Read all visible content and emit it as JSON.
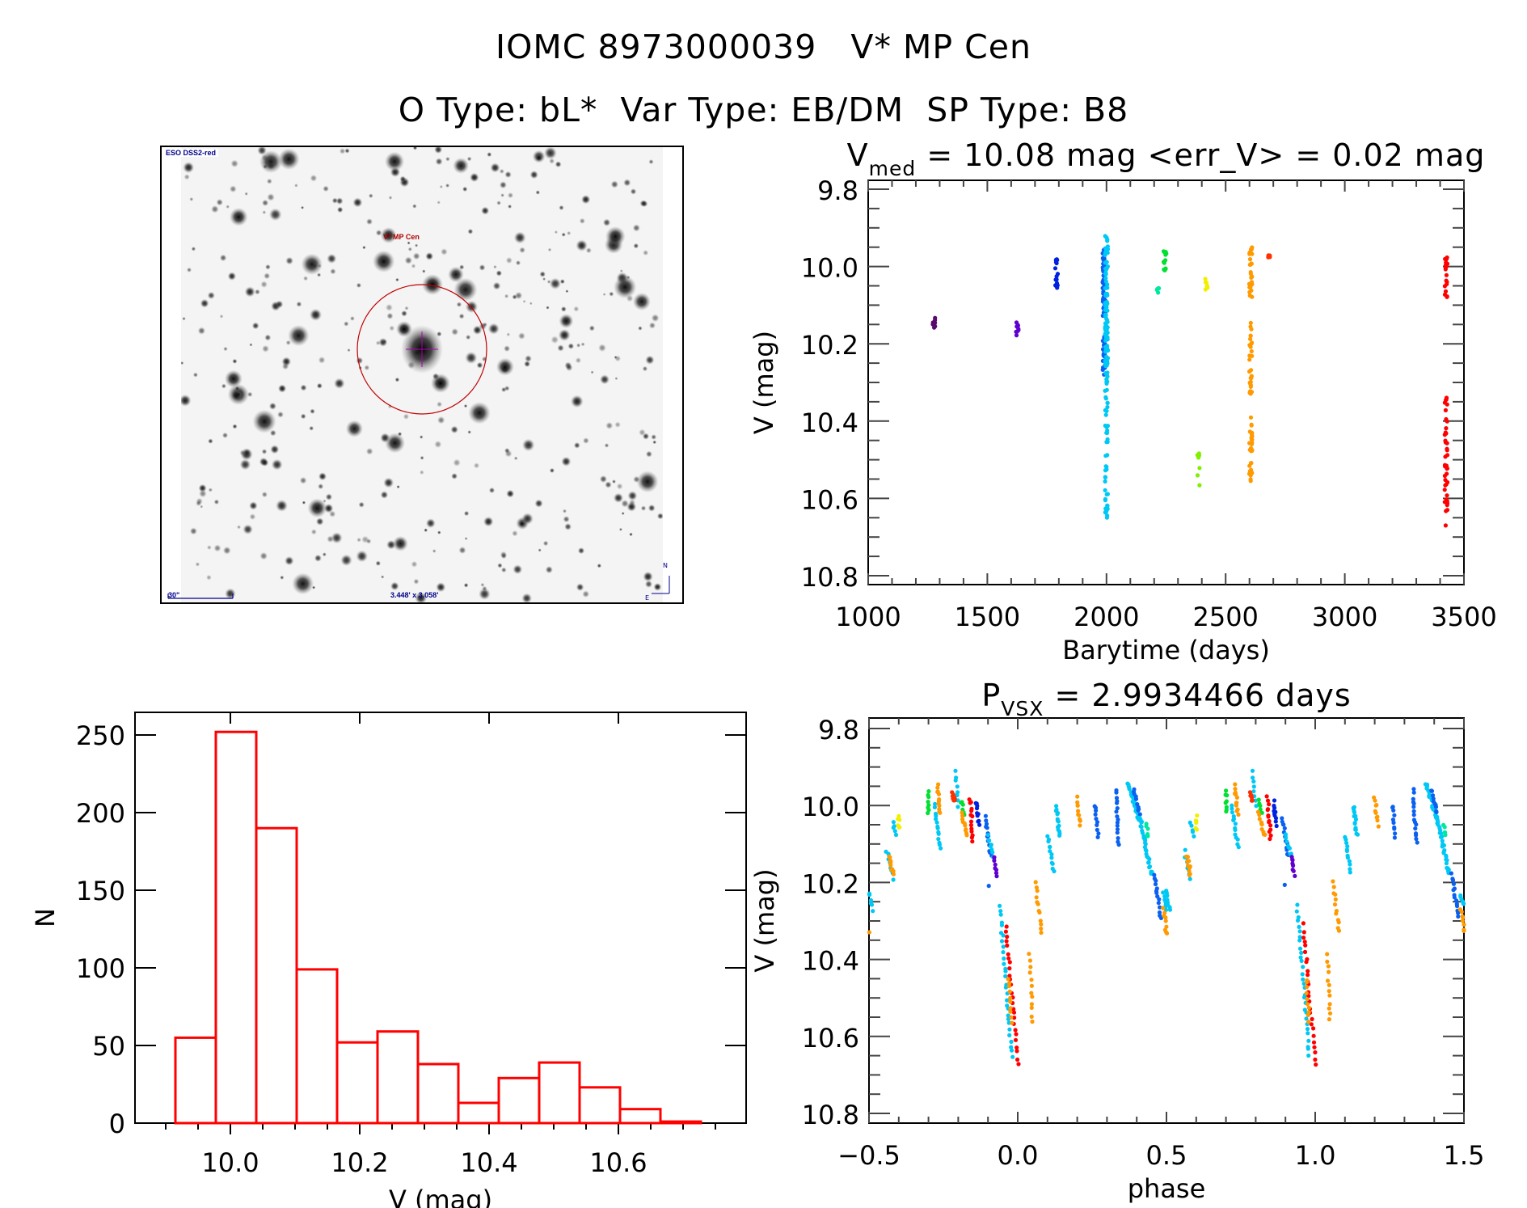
{
  "header": {
    "title_line1": "IOMC 8973000039   V* MP Cen",
    "title_line2": "O Type: bL*  Var Type: EB/DM  SP Type: B8"
  },
  "image_panel": {
    "survey": "ESO DSS2-red",
    "target": "V* MP Cen",
    "scale_bar": "30\"",
    "dimensions": "3.448' x 3.058'",
    "compass_north": "N",
    "compass_east": "E",
    "circle_color": "#c00000",
    "crosshair_color": "#b000b0"
  },
  "chart_data": [
    {
      "id": "light-curve",
      "type": "scatter",
      "title_main": "V",
      "title_sub": "med",
      "title_rest": " = 10.08 mag <err_V> = 0.02 mag",
      "xlabel": "Barytime (days)",
      "ylabel": "V (mag)",
      "xlim": [
        1000,
        3500
      ],
      "ylim": [
        9.8,
        10.8
      ],
      "y_inverted": true,
      "xticks": [
        1000,
        1500,
        2000,
        2500,
        3000,
        3500
      ],
      "xtick_labels": [
        "1000",
        "1500",
        "2000",
        "2500",
        "3000",
        "3500"
      ],
      "yticks": [
        9.8,
        10.0,
        10.2,
        10.4,
        10.6,
        10.8
      ],
      "ytick_labels": [
        "9.8",
        "10.0",
        "10.2",
        "10.4",
        "10.6",
        "10.8"
      ],
      "segments": [
        {
          "x": 1275,
          "color": "#5a0a6e",
          "y": [
            10.13,
            10.16
          ],
          "n": 8
        },
        {
          "x": 1625,
          "color": "#6000d0",
          "y": [
            10.14,
            10.18
          ],
          "n": 9
        },
        {
          "x": 1790,
          "color": "#0022e0",
          "y": [
            9.98,
            10.06
          ],
          "n": 16
        },
        {
          "x": 1990,
          "color": "#0a60f0",
          "y": [
            9.95,
            10.13
          ],
          "n": 60
        },
        {
          "x": 1990,
          "color": "#0a60f0",
          "y": [
            10.18,
            10.28
          ],
          "n": 25
        },
        {
          "x": 2000,
          "color": "#00c8f5",
          "y": [
            9.92,
            10.3
          ],
          "n": 110
        },
        {
          "x": 2000,
          "color": "#00c8f5",
          "y": [
            10.3,
            10.65
          ],
          "n": 45
        },
        {
          "x": 2215,
          "color": "#00e8a0",
          "y": [
            10.05,
            10.07
          ],
          "n": 5
        },
        {
          "x": 2245,
          "color": "#00e030",
          "y": [
            9.96,
            10.02
          ],
          "n": 14
        },
        {
          "x": 2385,
          "color": "#80f000",
          "y": [
            10.48,
            10.57
          ],
          "n": 7
        },
        {
          "x": 2420,
          "color": "#f0f000",
          "y": [
            10.03,
            10.06
          ],
          "n": 7
        },
        {
          "x": 2605,
          "color": "#ff9a00",
          "y": [
            9.95,
            10.08
          ],
          "n": 30
        },
        {
          "x": 2605,
          "color": "#ff9a00",
          "y": [
            10.13,
            10.33
          ],
          "n": 30
        },
        {
          "x": 2605,
          "color": "#ff9a00",
          "y": [
            10.39,
            10.56
          ],
          "n": 30
        },
        {
          "x": 2680,
          "color": "#ff3000",
          "y": [
            9.97,
            9.98
          ],
          "n": 6
        },
        {
          "x": 3425,
          "color": "#ff0000",
          "y": [
            9.97,
            10.09
          ],
          "n": 18
        },
        {
          "x": 3425,
          "color": "#ff0000",
          "y": [
            10.31,
            10.64
          ],
          "n": 40
        },
        {
          "x": 3425,
          "color": "#ff0000",
          "y": [
            10.67,
            10.67
          ],
          "n": 1
        }
      ]
    },
    {
      "id": "histogram",
      "type": "bar",
      "title": "",
      "xlabel": "V (mag)",
      "ylabel": "N",
      "xlim": [
        9.8525,
        10.7975
      ],
      "ylim": [
        0,
        265
      ],
      "xticks": [
        10.0,
        10.2,
        10.4,
        10.6
      ],
      "xtick_labels": [
        "10.0",
        "10.2",
        "10.4",
        "10.6"
      ],
      "yticks": [
        0,
        50,
        100,
        150,
        200,
        250
      ],
      "ytick_labels": [
        "0",
        "50",
        "100",
        "150",
        "200",
        "250"
      ],
      "bin_start": 9.915,
      "bin_width": 0.0625,
      "values": [
        55,
        252,
        190,
        99,
        52,
        59,
        38,
        13,
        29,
        39,
        23,
        9,
        1
      ],
      "color": "#ff0000"
    },
    {
      "id": "phase-curve",
      "type": "scatter",
      "title_main": "P",
      "title_sub": "VSX",
      "title_rest": " = 2.9934466 days",
      "xlabel": "phase",
      "ylabel": "V (mag)",
      "xlim": [
        -0.5,
        1.5
      ],
      "ylim": [
        9.8,
        10.8
      ],
      "y_inverted": true,
      "period_repeat": 1.0,
      "xticks": [
        -0.5,
        0.0,
        0.5,
        1.0,
        1.5
      ],
      "xtick_labels": [
        "−0.5",
        "0.0",
        "0.5",
        "1.0",
        "1.5"
      ],
      "yticks": [
        9.8,
        10.0,
        10.2,
        10.4,
        10.6,
        10.8
      ],
      "ytick_labels": [
        "9.8",
        "10.0",
        "10.2",
        "10.4",
        "10.6",
        "10.8"
      ],
      "segments": [
        {
          "p": [
            -0.5,
            -0.49
          ],
          "y": [
            10.22,
            10.27
          ],
          "color": "#00c8f5",
          "n": 8
        },
        {
          "p": [
            -0.5,
            -0.5
          ],
          "y": [
            10.33,
            10.33
          ],
          "color": "#ff9a00",
          "n": 1
        },
        {
          "p": [
            -0.44,
            -0.42
          ],
          "y": [
            10.12,
            10.19
          ],
          "color": "#00c8f5",
          "n": 8
        },
        {
          "p": [
            -0.43,
            -0.42
          ],
          "y": [
            10.13,
            10.18
          ],
          "color": "#ff9a00",
          "n": 10
        },
        {
          "p": [
            -0.42,
            -0.41
          ],
          "y": [
            10.04,
            10.08
          ],
          "color": "#00c8f5",
          "n": 5
        },
        {
          "p": [
            -0.4,
            -0.4
          ],
          "y": [
            10.03,
            10.06
          ],
          "color": "#f0f000",
          "n": 6
        },
        {
          "p": [
            -0.3,
            -0.3
          ],
          "y": [
            9.96,
            10.02
          ],
          "color": "#00e030",
          "n": 8
        },
        {
          "p": [
            -0.28,
            -0.26
          ],
          "y": [
            10.0,
            10.11
          ],
          "color": "#00c8f5",
          "n": 14
        },
        {
          "p": [
            -0.27,
            -0.26
          ],
          "y": [
            9.95,
            10.02
          ],
          "color": "#ff9a00",
          "n": 12
        },
        {
          "p": [
            -0.21,
            -0.2
          ],
          "y": [
            9.91,
            10.0
          ],
          "color": "#00c8f5",
          "n": 8
        },
        {
          "p": [
            -0.22,
            -0.21
          ],
          "y": [
            9.97,
            9.99
          ],
          "color": "#ff3000",
          "n": 8
        },
        {
          "p": [
            -0.19,
            -0.18
          ],
          "y": [
            9.99,
            10.02
          ],
          "color": "#00e030",
          "n": 6
        },
        {
          "p": [
            -0.19,
            -0.17
          ],
          "y": [
            10.02,
            10.08
          ],
          "color": "#ff9a00",
          "n": 10
        },
        {
          "p": [
            -0.16,
            -0.15
          ],
          "y": [
            9.98,
            10.09
          ],
          "color": "#ff0000",
          "n": 14
        },
        {
          "p": [
            -0.14,
            -0.13
          ],
          "y": [
            9.99,
            10.05
          ],
          "color": "#0022e0",
          "n": 10
        },
        {
          "p": [
            -0.11,
            -0.09
          ],
          "y": [
            10.03,
            10.13
          ],
          "color": "#0a60f0",
          "n": 14
        },
        {
          "p": [
            -0.1,
            -0.08
          ],
          "y": [
            10.08,
            10.13
          ],
          "color": "#00c8f5",
          "n": 8
        },
        {
          "p": [
            -0.08,
            -0.07
          ],
          "y": [
            10.13,
            10.18
          ],
          "color": "#6000d0",
          "n": 8
        },
        {
          "p": [
            -0.1,
            -0.1
          ],
          "y": [
            10.21,
            10.21
          ],
          "color": "#0a60f0",
          "n": 1
        },
        {
          "p": [
            -0.06,
            -0.02
          ],
          "y": [
            10.26,
            10.65
          ],
          "color": "#00c8f5",
          "n": 30
        },
        {
          "p": [
            -0.04,
            0.0
          ],
          "y": [
            10.31,
            10.67
          ],
          "color": "#ff0000",
          "n": 26
        },
        {
          "p": [
            -0.03,
            -0.02
          ],
          "y": [
            10.45,
            10.56
          ],
          "color": "#ff9a00",
          "n": 10
        },
        {
          "p": [
            0.04,
            0.05
          ],
          "y": [
            10.39,
            10.56
          ],
          "color": "#ff9a00",
          "n": 12
        },
        {
          "p": [
            0.06,
            0.08
          ],
          "y": [
            10.2,
            10.33
          ],
          "color": "#ff9a00",
          "n": 12
        },
        {
          "p": [
            0.1,
            0.12
          ],
          "y": [
            10.08,
            10.17
          ],
          "color": "#00c8f5",
          "n": 12
        },
        {
          "p": [
            0.13,
            0.14
          ],
          "y": [
            10.0,
            10.08
          ],
          "color": "#00c8f5",
          "n": 14
        },
        {
          "p": [
            0.2,
            0.21
          ],
          "y": [
            9.98,
            10.05
          ],
          "color": "#ff9a00",
          "n": 10
        },
        {
          "p": [
            0.26,
            0.27
          ],
          "y": [
            10.0,
            10.08
          ],
          "color": "#0a60f0",
          "n": 10
        },
        {
          "p": [
            0.33,
            0.34
          ],
          "y": [
            9.96,
            10.1
          ],
          "color": "#0a60f0",
          "n": 16
        },
        {
          "p": [
            0.37,
            0.41
          ],
          "y": [
            9.94,
            10.04
          ],
          "color": "#00c8f5",
          "n": 24
        },
        {
          "p": [
            0.39,
            0.41
          ],
          "y": [
            9.96,
            10.02
          ],
          "color": "#0a60f0",
          "n": 10
        },
        {
          "p": [
            0.41,
            0.45
          ],
          "y": [
            10.03,
            10.18
          ],
          "color": "#00c8f5",
          "n": 28
        },
        {
          "p": [
            0.43,
            0.44
          ],
          "y": [
            10.05,
            10.08
          ],
          "color": "#00e8a0",
          "n": 5
        },
        {
          "p": [
            0.46,
            0.48
          ],
          "y": [
            10.18,
            10.29
          ],
          "color": "#0a60f0",
          "n": 14
        },
        {
          "p": [
            0.49,
            0.5
          ],
          "y": [
            10.23,
            10.27
          ],
          "color": "#00c8f5",
          "n": 8
        },
        {
          "p": [
            0.49,
            0.5
          ],
          "y": [
            10.27,
            10.33
          ],
          "color": "#ff9a00",
          "n": 8
        }
      ]
    }
  ]
}
